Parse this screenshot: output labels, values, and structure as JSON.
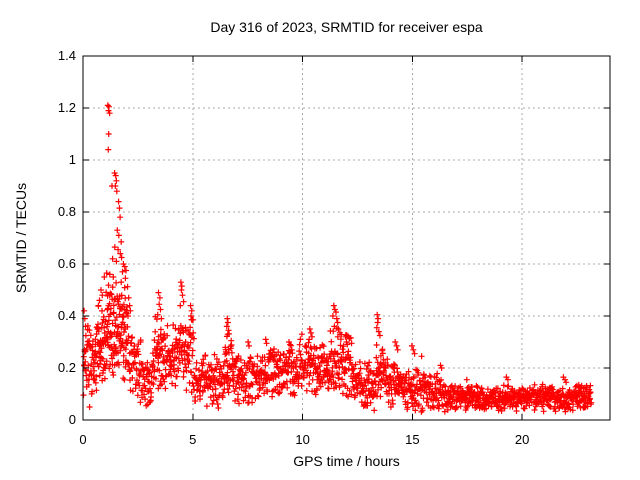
{
  "chart_data": {
    "type": "scatter",
    "title": "Day 316 of 2023, SRMTID for receiver espa",
    "xlabel": "GPS time / hours",
    "ylabel": "SRMTID / TECUs",
    "xlim": [
      0,
      24
    ],
    "ylim": [
      0,
      1.4
    ],
    "xtick_labels": [
      "0",
      "5",
      "10",
      "15",
      "20"
    ],
    "ytick_labels": [
      "0",
      "0.2",
      "0.4",
      "0.6",
      "0.8",
      "1",
      "1.2",
      "1.4"
    ],
    "grid": true,
    "grid_style": "dashed",
    "legend": "none",
    "marker": "plus",
    "marker_size_px": 7,
    "colors": {
      "marker": "#ff0000",
      "grid": "#aaaaaa",
      "axis": "#000000",
      "background": "#ffffff"
    },
    "seed": 316,
    "peak_points": [
      [
        0.05,
        0.42
      ],
      [
        0.08,
        0.39
      ],
      [
        0.12,
        0.36
      ],
      [
        0.3,
        0.05
      ],
      [
        0.7,
        0.44
      ],
      [
        0.75,
        0.46
      ],
      [
        0.82,
        0.5
      ],
      [
        0.88,
        0.48
      ],
      [
        0.97,
        0.55
      ],
      [
        1.08,
        0.565
      ],
      [
        1.13,
        1.21
      ],
      [
        1.18,
        1.205
      ],
      [
        1.16,
        1.19
      ],
      [
        1.21,
        1.18
      ],
      [
        1.17,
        1.1
      ],
      [
        1.15,
        1.04
      ],
      [
        1.22,
        0.56
      ],
      [
        1.32,
        0.9
      ],
      [
        1.35,
        0.62
      ],
      [
        1.38,
        0.55
      ],
      [
        1.44,
        0.95
      ],
      [
        1.45,
        0.665
      ],
      [
        1.47,
        0.9
      ],
      [
        1.49,
        0.94
      ],
      [
        1.52,
        0.92
      ],
      [
        1.52,
        0.61
      ],
      [
        1.54,
        0.88
      ],
      [
        1.56,
        0.73
      ],
      [
        1.6,
        0.655
      ],
      [
        1.62,
        0.84
      ],
      [
        1.63,
        0.71
      ],
      [
        1.66,
        0.815
      ],
      [
        1.69,
        0.78
      ],
      [
        1.7,
        0.64
      ],
      [
        1.74,
        0.685
      ],
      [
        1.76,
        0.625
      ],
      [
        1.8,
        0.57
      ],
      [
        1.84,
        0.6
      ],
      [
        1.9,
        0.59
      ],
      [
        1.93,
        0.545
      ],
      [
        1.96,
        0.575
      ],
      [
        2.05,
        0.4
      ],
      [
        2.08,
        0.47
      ],
      [
        2.12,
        0.44
      ],
      [
        2.16,
        0.42
      ],
      [
        2.88,
        0.055
      ],
      [
        2.95,
        0.06
      ],
      [
        3.4,
        0.405
      ],
      [
        3.44,
        0.49
      ],
      [
        3.47,
        0.445
      ],
      [
        3.5,
        0.47
      ],
      [
        3.53,
        0.425
      ],
      [
        3.57,
        0.39
      ],
      [
        4.43,
        0.44
      ],
      [
        4.46,
        0.53
      ],
      [
        4.48,
        0.5
      ],
      [
        4.5,
        0.515
      ],
      [
        4.53,
        0.48
      ],
      [
        4.58,
        0.455
      ],
      [
        4.9,
        0.44
      ],
      [
        4.92,
        0.4
      ],
      [
        4.95,
        0.42
      ],
      [
        4.98,
        0.385
      ],
      [
        5.95,
        0.075
      ],
      [
        6.55,
        0.36
      ],
      [
        6.57,
        0.39
      ],
      [
        6.59,
        0.33
      ],
      [
        6.6,
        0.375
      ],
      [
        6.63,
        0.345
      ],
      [
        7.05,
        0.08
      ],
      [
        7.52,
        0.3
      ],
      [
        7.56,
        0.285
      ],
      [
        7.7,
        0.085
      ],
      [
        8.32,
        0.31
      ],
      [
        8.36,
        0.295
      ],
      [
        9.38,
        0.3
      ],
      [
        9.43,
        0.29
      ],
      [
        9.9,
        0.31
      ],
      [
        9.97,
        0.33
      ],
      [
        10.3,
        0.31
      ],
      [
        10.33,
        0.35
      ],
      [
        10.38,
        0.335
      ],
      [
        10.43,
        0.32
      ],
      [
        11.38,
        0.4
      ],
      [
        11.42,
        0.44
      ],
      [
        11.45,
        0.36
      ],
      [
        11.47,
        0.425
      ],
      [
        11.52,
        0.415
      ],
      [
        11.56,
        0.39
      ],
      [
        11.6,
        0.375
      ],
      [
        11.63,
        0.35
      ],
      [
        11.95,
        0.32
      ],
      [
        12.0,
        0.3
      ],
      [
        12.8,
        0.06
      ],
      [
        12.95,
        0.055
      ],
      [
        13.38,
        0.355
      ],
      [
        13.4,
        0.405
      ],
      [
        13.42,
        0.375
      ],
      [
        13.44,
        0.39
      ],
      [
        13.47,
        0.34
      ],
      [
        13.52,
        0.325
      ],
      [
        14.22,
        0.3
      ],
      [
        14.28,
        0.285
      ],
      [
        14.33,
        0.27
      ],
      [
        14.7,
        0.06
      ],
      [
        14.98,
        0.285
      ],
      [
        15.04,
        0.27
      ],
      [
        15.1,
        0.255
      ],
      [
        15.42,
        0.245
      ],
      [
        16.28,
        0.21
      ],
      [
        16.33,
        0.2
      ],
      [
        17.48,
        0.155
      ],
      [
        19.28,
        0.165
      ],
      [
        19.35,
        0.155
      ],
      [
        21.88,
        0.165
      ],
      [
        21.95,
        0.155
      ],
      [
        22.0,
        0.145
      ],
      [
        22.58,
        0.135
      ]
    ],
    "dense_bands_format": [
      "x_start",
      "x_end",
      "n_points",
      "y_center_at_start",
      "y_center_at_end",
      "y_half_spread"
    ],
    "dense_bands": [
      [
        0.02,
        0.55,
        50,
        0.21,
        0.23,
        0.08
      ],
      [
        0.55,
        1.05,
        55,
        0.27,
        0.31,
        0.09
      ],
      [
        1.05,
        2.05,
        100,
        0.3,
        0.32,
        0.1
      ],
      [
        1.05,
        2.05,
        30,
        0.47,
        0.45,
        0.045
      ],
      [
        2.05,
        2.65,
        50,
        0.24,
        0.2,
        0.08
      ],
      [
        2.65,
        3.25,
        45,
        0.16,
        0.15,
        0.06
      ],
      [
        3.25,
        3.7,
        45,
        0.25,
        0.26,
        0.085
      ],
      [
        3.7,
        4.35,
        55,
        0.23,
        0.24,
        0.075
      ],
      [
        4.35,
        5.05,
        60,
        0.27,
        0.25,
        0.09
      ],
      [
        5.05,
        6.45,
        110,
        0.16,
        0.15,
        0.055
      ],
      [
        6.45,
        6.85,
        40,
        0.22,
        0.2,
        0.075
      ],
      [
        6.85,
        8.45,
        120,
        0.165,
        0.16,
        0.055
      ],
      [
        8.45,
        10.05,
        125,
        0.19,
        0.19,
        0.055
      ],
      [
        10.05,
        10.7,
        55,
        0.21,
        0.2,
        0.06
      ],
      [
        10.7,
        11.25,
        45,
        0.18,
        0.2,
        0.055
      ],
      [
        11.25,
        12.25,
        85,
        0.235,
        0.21,
        0.07
      ],
      [
        12.25,
        13.35,
        85,
        0.145,
        0.13,
        0.05
      ],
      [
        13.35,
        13.8,
        40,
        0.19,
        0.17,
        0.065
      ],
      [
        13.8,
        14.55,
        60,
        0.14,
        0.13,
        0.05
      ],
      [
        14.55,
        15.55,
        75,
        0.125,
        0.115,
        0.05
      ],
      [
        15.55,
        16.55,
        75,
        0.11,
        0.1,
        0.042
      ],
      [
        16.55,
        18.55,
        150,
        0.088,
        0.082,
        0.028
      ],
      [
        18.55,
        20.55,
        155,
        0.082,
        0.088,
        0.028
      ],
      [
        20.55,
        22.35,
        140,
        0.088,
        0.082,
        0.03
      ],
      [
        22.35,
        23.15,
        65,
        0.095,
        0.085,
        0.028
      ]
    ]
  }
}
